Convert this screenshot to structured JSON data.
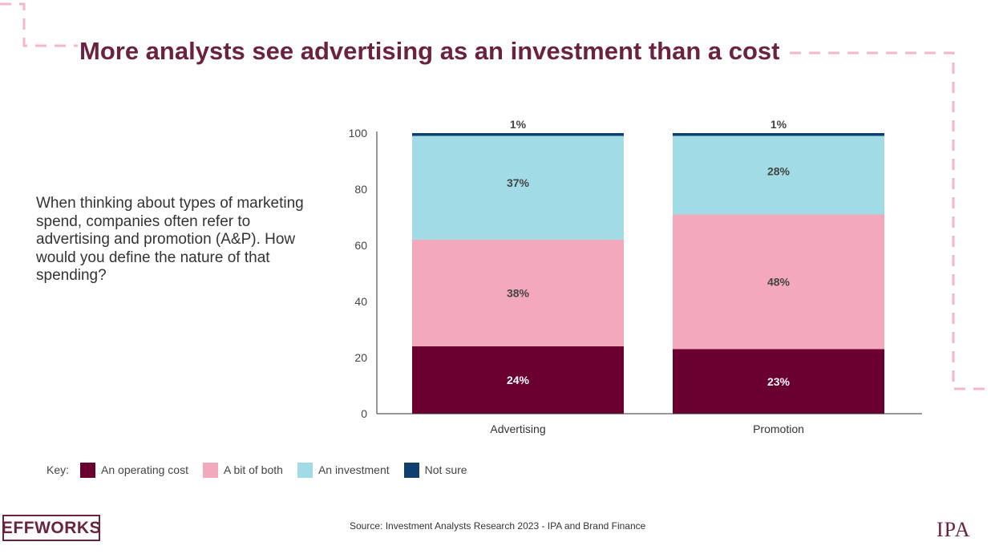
{
  "title": "More analysts see advertising as an investment than a cost",
  "question": "When thinking about types of marketing spend, companies often refer to advertising and promotion (A&P). How would you define the nature of that spending?",
  "key": {
    "label": "Key:",
    "items": [
      {
        "name": "An operating cost",
        "color": "#6a0030"
      },
      {
        "name": "A bit of both",
        "color": "#f4a8bb"
      },
      {
        "name": "An investment",
        "color": "#a1dbe5"
      },
      {
        "name": "Not sure",
        "color": "#0e3f6e"
      }
    ]
  },
  "source": "Source: Investment Analysts Research 2023 - IPA and Brand Finance",
  "logos": {
    "effworks": "EFFWORKS",
    "ipa": "IPA"
  },
  "colors": {
    "title": "#6b2240",
    "dash": "#f4b6c8"
  },
  "chart_data": {
    "type": "bar",
    "stacked": true,
    "categories": [
      "Advertising",
      "Promotion"
    ],
    "series": [
      {
        "name": "An operating cost",
        "values": [
          24,
          23
        ],
        "labels": [
          "24%",
          "23%"
        ],
        "color": "#6a0030",
        "label_color": "#ffffff"
      },
      {
        "name": "A bit of both",
        "values": [
          38,
          48
        ],
        "labels": [
          "38%",
          "48%"
        ],
        "color": "#f4a8bb",
        "label_color": "#444444"
      },
      {
        "name": "An investment",
        "values": [
          37,
          28
        ],
        "labels": [
          "37%",
          "28%"
        ],
        "color": "#a1dbe5",
        "label_color": "#444444"
      },
      {
        "name": "Not sure",
        "values": [
          1,
          1
        ],
        "labels": [
          "1%",
          "1%"
        ],
        "color": "#0e3f6e",
        "label_color": "#444444"
      }
    ],
    "ylim": [
      0,
      100
    ],
    "yticks": [
      0,
      20,
      40,
      60,
      80,
      100
    ],
    "ytick_labels": [
      "0",
      "20",
      "40",
      "60",
      "80",
      "100"
    ],
    "title": "",
    "xlabel": "",
    "ylabel": "",
    "grid": false,
    "legend": "bottom-left"
  }
}
